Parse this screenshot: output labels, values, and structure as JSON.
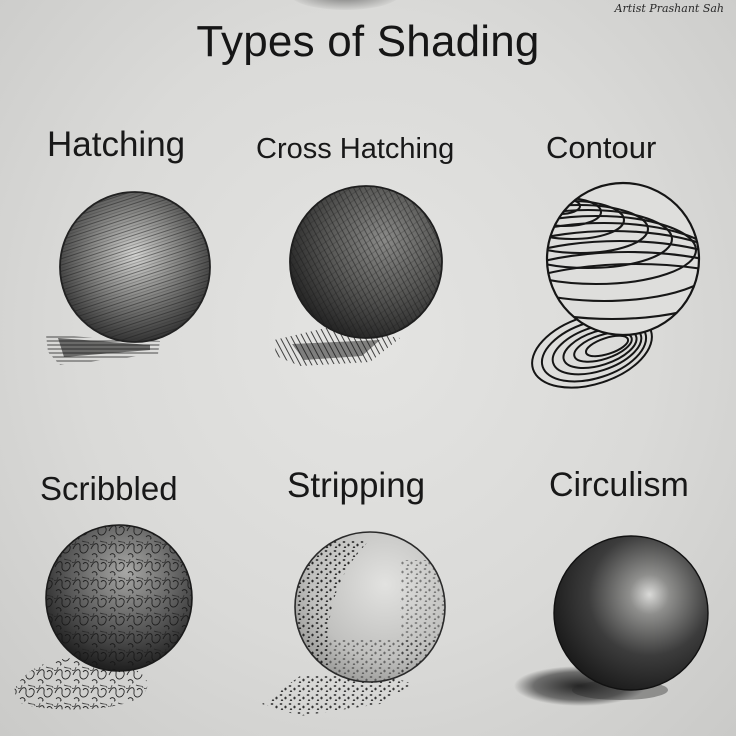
{
  "page": {
    "title": "Types of Shading",
    "signature": "Artist Prashant Sah",
    "labels": {
      "hatching": "Hatching",
      "cross_hatching": "Cross Hatching",
      "contour": "Contour",
      "scribbled": "Scribbled",
      "stripping": "Stripping",
      "circulism": "Circulism"
    }
  },
  "colors": {
    "paper": "#dcdcda",
    "graphite": "#1c1c1c",
    "text": "#161616"
  }
}
